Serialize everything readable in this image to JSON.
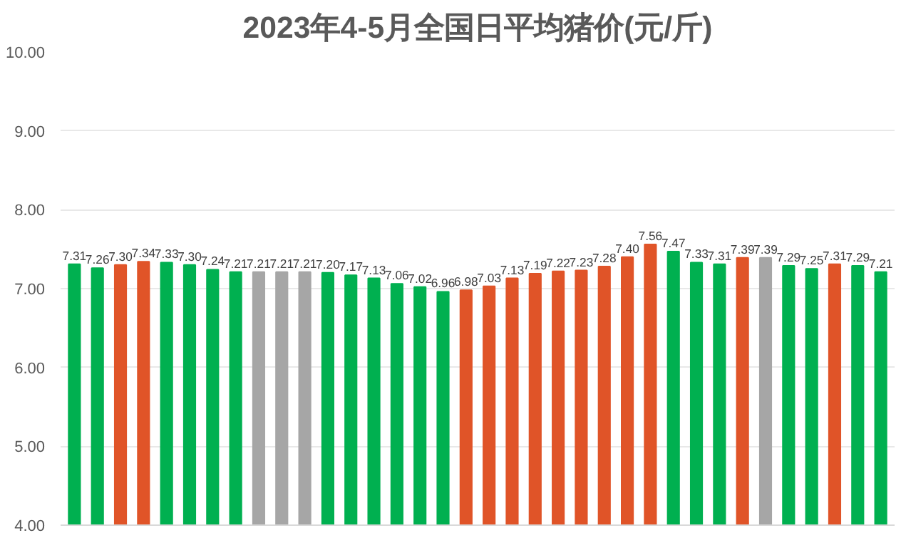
{
  "chart_data": {
    "type": "bar",
    "title": "2023年4-5月全国日平均猪价(元/斤)",
    "categories": [
      null,
      null,
      null,
      null,
      null,
      null,
      null,
      null,
      null,
      null,
      null,
      null,
      null,
      null,
      null,
      null,
      null,
      null,
      null,
      null,
      null,
      null,
      null,
      null,
      null,
      null,
      null,
      null,
      null,
      null,
      null,
      null,
      null,
      null,
      null,
      null
    ],
    "values": [
      7.31,
      7.26,
      7.3,
      7.34,
      7.33,
      7.3,
      7.24,
      7.21,
      7.21,
      7.21,
      7.21,
      7.2,
      7.17,
      7.13,
      7.06,
      7.02,
      6.96,
      6.98,
      7.03,
      7.13,
      7.19,
      7.22,
      7.23,
      7.28,
      7.4,
      7.56,
      7.47,
      7.33,
      7.31,
      7.39,
      7.39,
      7.29,
      7.25,
      7.31,
      7.29,
      7.21
    ],
    "colors": [
      "#00b050",
      "#00b050",
      "#e05428",
      "#e05428",
      "#00b050",
      "#00b050",
      "#00b050",
      "#00b050",
      "#a6a6a6",
      "#a6a6a6",
      "#a6a6a6",
      "#00b050",
      "#00b050",
      "#00b050",
      "#00b050",
      "#00b050",
      "#00b050",
      "#e05428",
      "#e05428",
      "#e05428",
      "#e05428",
      "#e05428",
      "#e05428",
      "#e05428",
      "#e05428",
      "#e05428",
      "#00b050",
      "#00b050",
      "#00b050",
      "#e05428",
      "#a6a6a6",
      "#00b050",
      "#00b050",
      "#e05428",
      "#00b050",
      "#00b050"
    ],
    "ylim": [
      4,
      10
    ],
    "yticks": [
      {
        "value": 4,
        "label": "4.00"
      },
      {
        "value": 5,
        "label": "5.00"
      },
      {
        "value": 6,
        "label": "6.00"
      },
      {
        "value": 7,
        "label": "7.00"
      },
      {
        "value": 8,
        "label": "8.00"
      },
      {
        "value": 9,
        "label": "9.00"
      },
      {
        "value": 10,
        "label": "10.00"
      }
    ],
    "value_labels": [
      "7.31",
      "7.26",
      "7.30",
      "7.34",
      "7.33",
      "7.30",
      "7.24",
      "7.21",
      "7.21",
      "7.21",
      "7.21",
      "7.20",
      "7.17",
      "7.13",
      "7.06",
      "7.02",
      "6.96",
      "6.98",
      "7.03",
      "7.13",
      "7.19",
      "7.22",
      "7.23",
      "7.28",
      "7.40",
      "7.56",
      "7.47",
      "7.33",
      "7.31",
      "7.39",
      "7.39",
      "7.29",
      "7.25",
      "7.31",
      "7.29",
      "7.21"
    ],
    "grid": "y"
  }
}
